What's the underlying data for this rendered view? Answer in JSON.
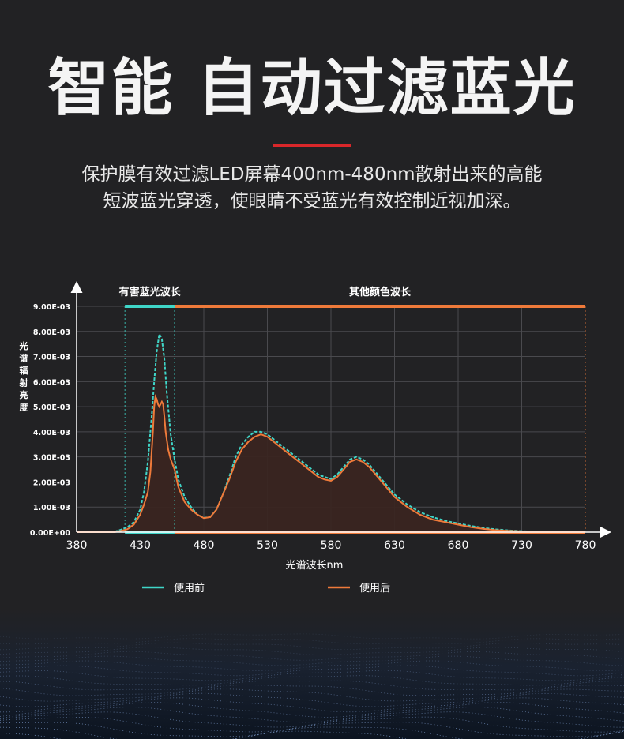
{
  "headline": "智能 自动过滤蓝光",
  "intro": {
    "line1": "保护膜有效过滤LED屏幕400nm-480nm散射出来的高能",
    "line2": "短波蓝光穿透，使眼睛不受蓝光有效控制近视加深。"
  },
  "colors": {
    "accent_red": "#d9272a",
    "before": "#3fd6c8",
    "after": "#ef7a3a",
    "band_harmful": "#3fd6c8",
    "band_other": "#ef7a3a"
  },
  "chart_data": {
    "type": "line",
    "ylabel": "光谱辐射亮度",
    "xlabel": "光谱波长nm",
    "xlim": [
      380,
      780
    ],
    "ylim": [
      0,
      0.009
    ],
    "x_ticks": [
      "380",
      "430",
      "480",
      "530",
      "580",
      "630",
      "680",
      "730",
      "780"
    ],
    "y_ticks": [
      "0.00E+00",
      "1.00E-03",
      "2.00E-03",
      "3.00E-03",
      "4.00E-03",
      "5.00E-03",
      "6.00E-03",
      "7.00E-03",
      "8.00E-03",
      "9.00E-03"
    ],
    "grid": true,
    "legend_position": "bottom",
    "bands": [
      {
        "label": "有害蓝光波长",
        "from": 418,
        "to": 457
      },
      {
        "label": "其他颜色波长",
        "from": 457,
        "to": 780
      }
    ],
    "series": [
      {
        "name": "使用前",
        "x": [
          380,
          405,
          410,
          415,
          420,
          425,
          430,
          433,
          436,
          439,
          441,
          443,
          445,
          447,
          449,
          451,
          454,
          457,
          460,
          465,
          470,
          475,
          480,
          485,
          490,
          495,
          500,
          505,
          510,
          515,
          520,
          525,
          530,
          535,
          540,
          545,
          550,
          555,
          560,
          565,
          570,
          575,
          580,
          585,
          590,
          595,
          600,
          605,
          610,
          615,
          620,
          625,
          630,
          640,
          650,
          660,
          670,
          680,
          690,
          700,
          710,
          720,
          730,
          740,
          750,
          760,
          770,
          780
        ],
        "y": [
          0,
          0,
          2e-05,
          0.0001,
          0.0002,
          0.0004,
          0.0009,
          0.0016,
          0.0028,
          0.0046,
          0.006,
          0.0072,
          0.0079,
          0.0077,
          0.0069,
          0.0055,
          0.0039,
          0.0029,
          0.0021,
          0.0014,
          0.001,
          0.0007,
          0.00057,
          0.0006,
          0.0009,
          0.0015,
          0.0022,
          0.003,
          0.0035,
          0.0038,
          0.004,
          0.004,
          0.0039,
          0.0037,
          0.0035,
          0.0033,
          0.0031,
          0.0029,
          0.0027,
          0.0025,
          0.0023,
          0.0022,
          0.00212,
          0.0023,
          0.0026,
          0.0029,
          0.003,
          0.0029,
          0.0027,
          0.0024,
          0.0021,
          0.0018,
          0.0015,
          0.0011,
          0.0008,
          0.0006,
          0.00045,
          0.00035,
          0.00025,
          0.00017,
          0.00011,
          7e-05,
          4e-05,
          2e-05,
          1e-05,
          0,
          0,
          0
        ]
      },
      {
        "name": "使用后",
        "x": [
          380,
          410,
          415,
          420,
          425,
          430,
          433,
          436,
          438,
          440,
          441,
          442,
          443,
          444,
          445,
          446,
          447,
          448,
          449,
          450,
          452,
          454,
          457,
          460,
          465,
          470,
          475,
          480,
          485,
          490,
          495,
          500,
          505,
          510,
          515,
          520,
          525,
          530,
          535,
          540,
          545,
          550,
          555,
          560,
          565,
          570,
          575,
          580,
          585,
          590,
          595,
          600,
          605,
          610,
          615,
          620,
          625,
          630,
          640,
          650,
          660,
          670,
          680,
          690,
          700,
          710,
          720,
          730,
          740,
          750,
          760,
          770,
          780
        ],
        "y": [
          0,
          0,
          5e-05,
          0.00012,
          0.0003,
          0.0007,
          0.0011,
          0.0016,
          0.0024,
          0.004,
          0.005,
          0.0054,
          0.0053,
          0.0051,
          0.005,
          0.0051,
          0.0052,
          0.0051,
          0.0046,
          0.004,
          0.0033,
          0.0029,
          0.0025,
          0.0018,
          0.0012,
          0.0009,
          0.0007,
          0.00056,
          0.0006,
          0.0009,
          0.0015,
          0.0021,
          0.0028,
          0.0033,
          0.0036,
          0.0038,
          0.0039,
          0.0038,
          0.0036,
          0.0034,
          0.0032,
          0.003,
          0.0028,
          0.0026,
          0.0024,
          0.0022,
          0.0021,
          0.00205,
          0.0022,
          0.0025,
          0.0028,
          0.0029,
          0.0028,
          0.0026,
          0.0023,
          0.002,
          0.0017,
          0.0014,
          0.001,
          0.0007,
          0.0005,
          0.0004,
          0.0003,
          0.0002,
          0.00013,
          8e-05,
          5e-05,
          3e-05,
          1e-05,
          0,
          0,
          0,
          0
        ]
      }
    ]
  }
}
